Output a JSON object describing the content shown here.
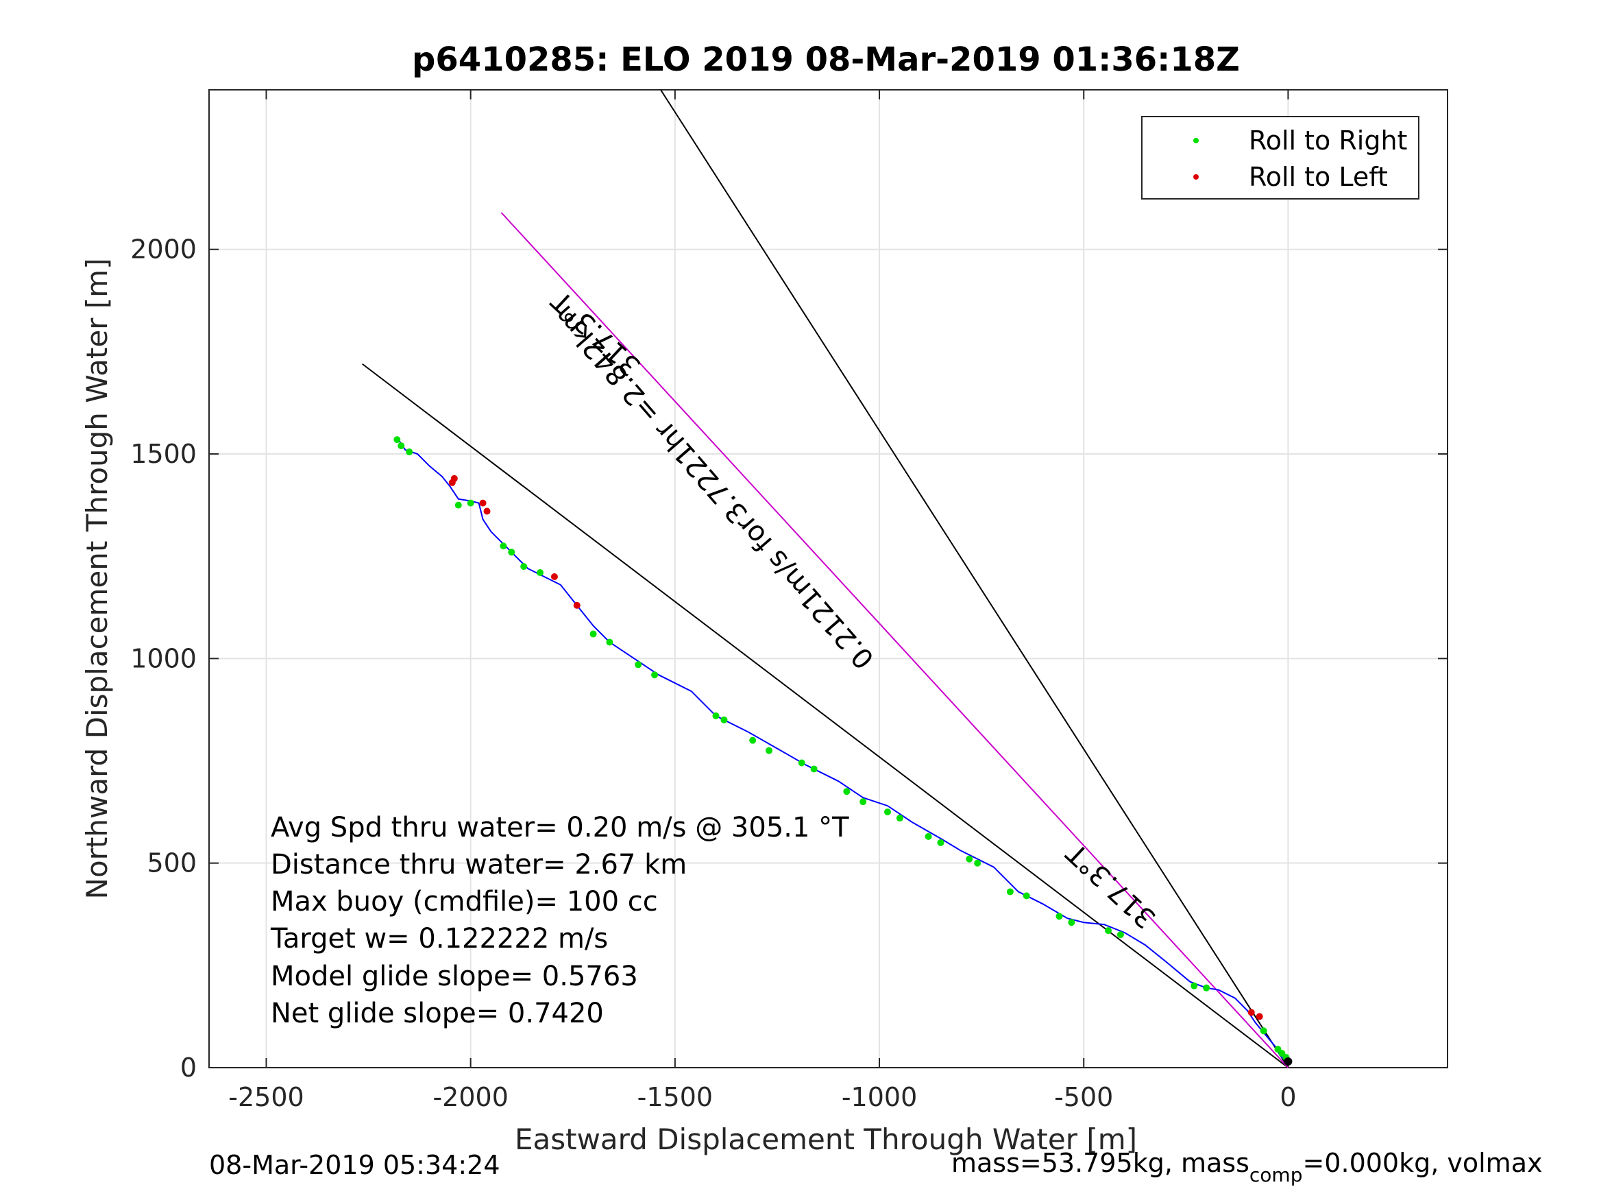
{
  "chart_data": {
    "type": "line",
    "title": "p6410285: ELO 2019 08-Mar-2019 01:36:18Z",
    "xlabel": "Eastward Displacement Through Water [m]",
    "ylabel": "Northward Displacement Through Water [m]",
    "xlim": [
      -2640,
      390
    ],
    "ylim": [
      0,
      2390
    ],
    "xticks": [
      "-2500",
      "-2000",
      "-1500",
      "-1000",
      "-500",
      "0"
    ],
    "xtick_values": [
      -2500,
      -2000,
      -1500,
      -1000,
      -500,
      0
    ],
    "yticks": [
      "0",
      "500",
      "1000",
      "1500",
      "2000"
    ],
    "ytick_values": [
      0,
      500,
      1000,
      1500,
      2000
    ],
    "grid": true,
    "legend_position": "top-right",
    "legend": [
      {
        "label": "Roll to Right",
        "color": "#00e000"
      },
      {
        "label": "Roll to Left",
        "color": "#dd0000"
      }
    ],
    "track": {
      "color": "#0000ff",
      "x": [
        0,
        -10,
        -20,
        -30,
        -55,
        -80,
        -100,
        -130,
        -170,
        -200,
        -240,
        -300,
        -350,
        -400,
        -450,
        -500,
        -540,
        -600,
        -660,
        -720,
        -800,
        -850,
        -920,
        -980,
        -1040,
        -1100,
        -1180,
        -1250,
        -1320,
        -1400,
        -1460,
        -1540,
        -1600,
        -1660,
        -1700,
        -1740,
        -1780,
        -1820,
        -1860,
        -1900,
        -1950,
        -1970,
        -1980,
        -2000,
        -2030,
        -2050,
        -2070,
        -2100,
        -2130,
        -2160,
        -2180
      ],
      "y": [
        10,
        20,
        30,
        50,
        80,
        110,
        140,
        170,
        190,
        195,
        210,
        260,
        300,
        330,
        350,
        355,
        365,
        400,
        430,
        490,
        530,
        560,
        600,
        640,
        660,
        700,
        740,
        780,
        820,
        860,
        920,
        960,
        1000,
        1040,
        1080,
        1130,
        1180,
        1200,
        1220,
        1260,
        1310,
        1340,
        1380,
        1385,
        1390,
        1420,
        1445,
        1470,
        1500,
        1510,
        1540
      ]
    },
    "roll_right": {
      "color": "#00e000",
      "x": [
        -5,
        -15,
        -25,
        -60,
        -200,
        -230,
        -410,
        -440,
        -530,
        -560,
        -640,
        -680,
        -760,
        -780,
        -850,
        -880,
        -950,
        -980,
        -1040,
        -1080,
        -1160,
        -1190,
        -1270,
        -1310,
        -1380,
        -1400,
        -1550,
        -1590,
        -1660,
        -1700,
        -1830,
        -1870,
        -1900,
        -1920,
        -2000,
        -2030,
        -2150,
        -2170,
        -2180
      ],
      "y": [
        25,
        35,
        45,
        90,
        195,
        200,
        325,
        335,
        355,
        370,
        420,
        430,
        500,
        510,
        550,
        565,
        610,
        625,
        650,
        675,
        730,
        745,
        775,
        800,
        850,
        860,
        960,
        985,
        1040,
        1060,
        1210,
        1225,
        1260,
        1275,
        1380,
        1375,
        1505,
        1520,
        1535
      ]
    },
    "roll_left": {
      "color": "#dd0000",
      "x": [
        -70,
        -90,
        -1740,
        -1795,
        -1960,
        -1970,
        -2040,
        -2045
      ],
      "y": [
        125,
        135,
        1130,
        1200,
        1360,
        1380,
        1440,
        1430
      ]
    },
    "lines": [
      {
        "name": "",
        "color": "#000000",
        "x": [
          0,
          -1535
        ],
        "y": [
          0,
          2390
        ]
      },
      {
        "name": "",
        "color": "#000000",
        "x": [
          0,
          -2265
        ],
        "y": [
          0,
          1720
        ]
      },
      {
        "name": "",
        "color": "#cc00cc",
        "x": [
          0,
          -1925
        ],
        "y": [
          0,
          2090
        ]
      }
    ],
    "line_labels": [
      "317.3°T",
      "0.2121m/s for3.7221hr =2.842km",
      "317.3°T"
    ],
    "annotations": [
      "Avg Spd thru water=  0.20 m/s @ 305.1 °T",
      "Distance thru water=  2.67 km",
      "Max buoy (cmdfile)= 100 cc",
      "Target w= 0.122222 m/s",
      "Model glide slope= 0.5763",
      "Net glide slope= 0.7420"
    ],
    "footer_left": "08-Mar-2019 05:34:24",
    "footer_right_prefix": "mass=53.795kg, mass",
    "footer_right_sub": "comp",
    "footer_right_suffix": "=0.000kg, volmax"
  }
}
